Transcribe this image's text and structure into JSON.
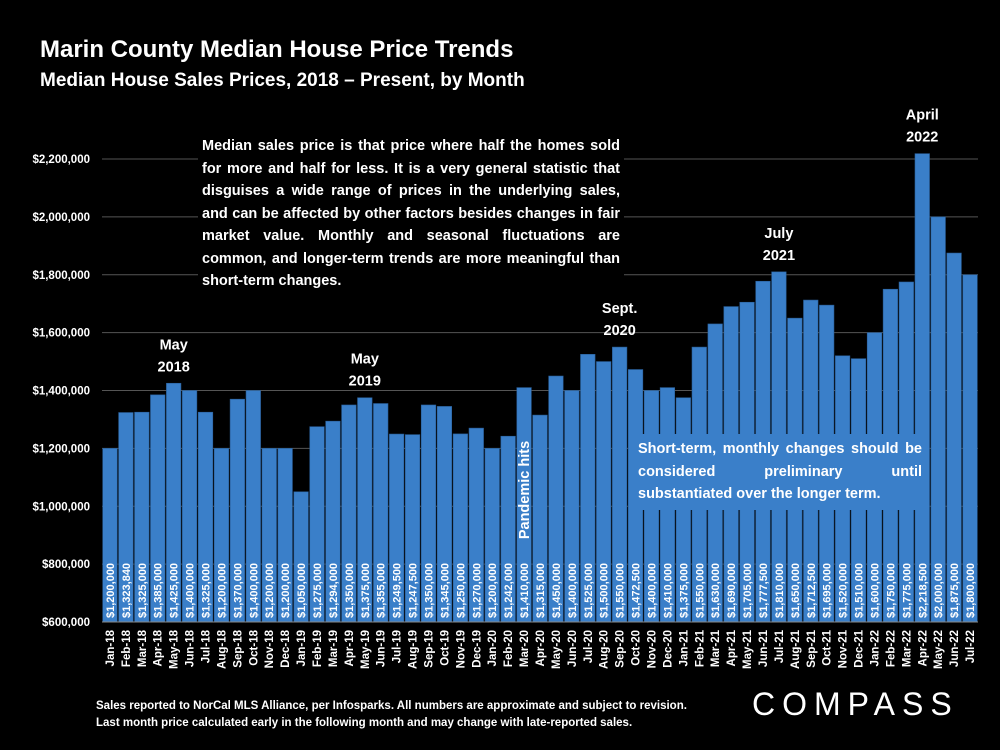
{
  "title": "Marin County Median House Price Trends",
  "subtitle": "Median House Sales Prices, 2018 – Present, by Month",
  "note_top": "Median sales price is that price where half the homes sold for more and half for less. It is a very general statistic that disguises a wide range of prices in the underlying sales, and can be affected by other factors besides changes in fair market value. Monthly and seasonal fluctuations are common, and longer-term trends are more meaningful than short-term changes.",
  "note_box": "Short-term, monthly changes should be considered preliminary until substantiated over the longer term.",
  "footer_line1": "Sales reported to NorCal MLS Alliance, per Infosparks. All numbers are approximate and subject to revision.",
  "footer_line2": "Last month price calculated early in the following month and may change with late-reported sales.",
  "logo": "COMPASS",
  "colors": {
    "bar": "#3a7fc9",
    "bar_edge": "#2a5f99",
    "background": "#000000",
    "grid": "#555555"
  },
  "chart_data": {
    "type": "bar",
    "ylim": [
      600000,
      2200000
    ],
    "ytick_values": [
      600000,
      800000,
      1000000,
      1200000,
      1400000,
      1600000,
      1800000,
      2000000,
      2200000
    ],
    "ytick_labels": [
      "$600,000",
      "$800,000",
      "$1,000,000",
      "$1,200,000",
      "$1,400,000",
      "$1,600,000",
      "$1,800,000",
      "$2,000,000",
      "$2,200,000"
    ],
    "categories": [
      "Jan-18",
      "Feb-18",
      "Mar-18",
      "Apr-18",
      "May-18",
      "Jun-18",
      "Jul-18",
      "Aug-18",
      "Sep-18",
      "Oct-18",
      "Nov-18",
      "Dec-18",
      "Jan-19",
      "Feb-19",
      "Mar-19",
      "Apr-19",
      "May-19",
      "Jun-19",
      "Jul-19",
      "Aug-19",
      "Sep-19",
      "Oct-19",
      "Nov-19",
      "Dec-19",
      "Jan-20",
      "Feb-20",
      "Mar-20",
      "Apr-20",
      "May-20",
      "Jun-20",
      "Jul-20",
      "Aug-20",
      "Sep-20",
      "Oct-20",
      "Nov-20",
      "Dec-20",
      "Jan-21",
      "Feb-21",
      "Mar-21",
      "Apr-21",
      "May-21",
      "Jun-21",
      "Jul-21",
      "Aug-21",
      "Sep-21",
      "Oct-21",
      "Nov-21",
      "Dec-21",
      "Jan-22",
      "Feb-22",
      "Mar-22",
      "Apr-22",
      "May-22",
      "Jun-22",
      "Jul-22"
    ],
    "values": [
      1200000,
      1323840,
      1325000,
      1385000,
      1425000,
      1400000,
      1325000,
      1200000,
      1370000,
      1400000,
      1200000,
      1200000,
      1050000,
      1275000,
      1294000,
      1350000,
      1375000,
      1355000,
      1249500,
      1247500,
      1350000,
      1345000,
      1250000,
      1270000,
      1200000,
      1242000,
      1410000,
      1315000,
      1450000,
      1400000,
      1525000,
      1500000,
      1550000,
      1472500,
      1400000,
      1410000,
      1375000,
      1550000,
      1630000,
      1690000,
      1705000,
      1777500,
      1810000,
      1650000,
      1712500,
      1695000,
      1520000,
      1510000,
      1600000,
      1750000,
      1775000,
      2218500,
      2000000,
      1875000,
      1800000
    ],
    "value_labels": [
      "$1,200,000",
      "$1,323,840",
      "$1,325,000",
      "$1,385,000",
      "$1,425,000",
      "$1,400,000",
      "$1,325,000",
      "$1,200,000",
      "$1,370,000",
      "$1,400,000",
      "$1,200,000",
      "$1,200,000",
      "$1,050,000",
      "$1,275,000",
      "$1,294,000",
      "$1,350,000",
      "$1,375,000",
      "$1,355,000",
      "$1,249,500",
      "$1,247,500",
      "$1,350,000",
      "$1,345,000",
      "$1,250,000",
      "$1,270,000",
      "$1,200,000",
      "$1,242,000",
      "$1,410,000",
      "$1,315,000",
      "$1,450,000",
      "$1,400,000",
      "$1,525,000",
      "$1,500,000",
      "$1,550,000",
      "$1,472,500",
      "$1,400,000",
      "$1,410,000",
      "$1,375,000",
      "$1,550,000",
      "$1,630,000",
      "$1,690,000",
      "$1,705,000",
      "$1,777,500",
      "$1,810,000",
      "$1,650,000",
      "$1,712,500",
      "$1,695,000",
      "$1,520,000",
      "$1,510,000",
      "$1,600,000",
      "$1,750,000",
      "$1,775,000",
      "$2,218,500",
      "$2,000,000",
      "$1,875,000",
      "$1,800,000"
    ],
    "annotations": [
      {
        "index": 4,
        "lines": [
          "May",
          "2018"
        ]
      },
      {
        "index": 16,
        "lines": [
          "May",
          "2019"
        ]
      },
      {
        "index": 32,
        "lines": [
          "Sept.",
          "2020"
        ]
      },
      {
        "index": 42,
        "lines": [
          "July",
          "2021"
        ]
      },
      {
        "index": 51,
        "lines": [
          "April",
          "2022"
        ]
      }
    ],
    "vertical_annotation": {
      "index": 26,
      "text": "Pandemic hits"
    },
    "grid": true,
    "legend": "none"
  }
}
